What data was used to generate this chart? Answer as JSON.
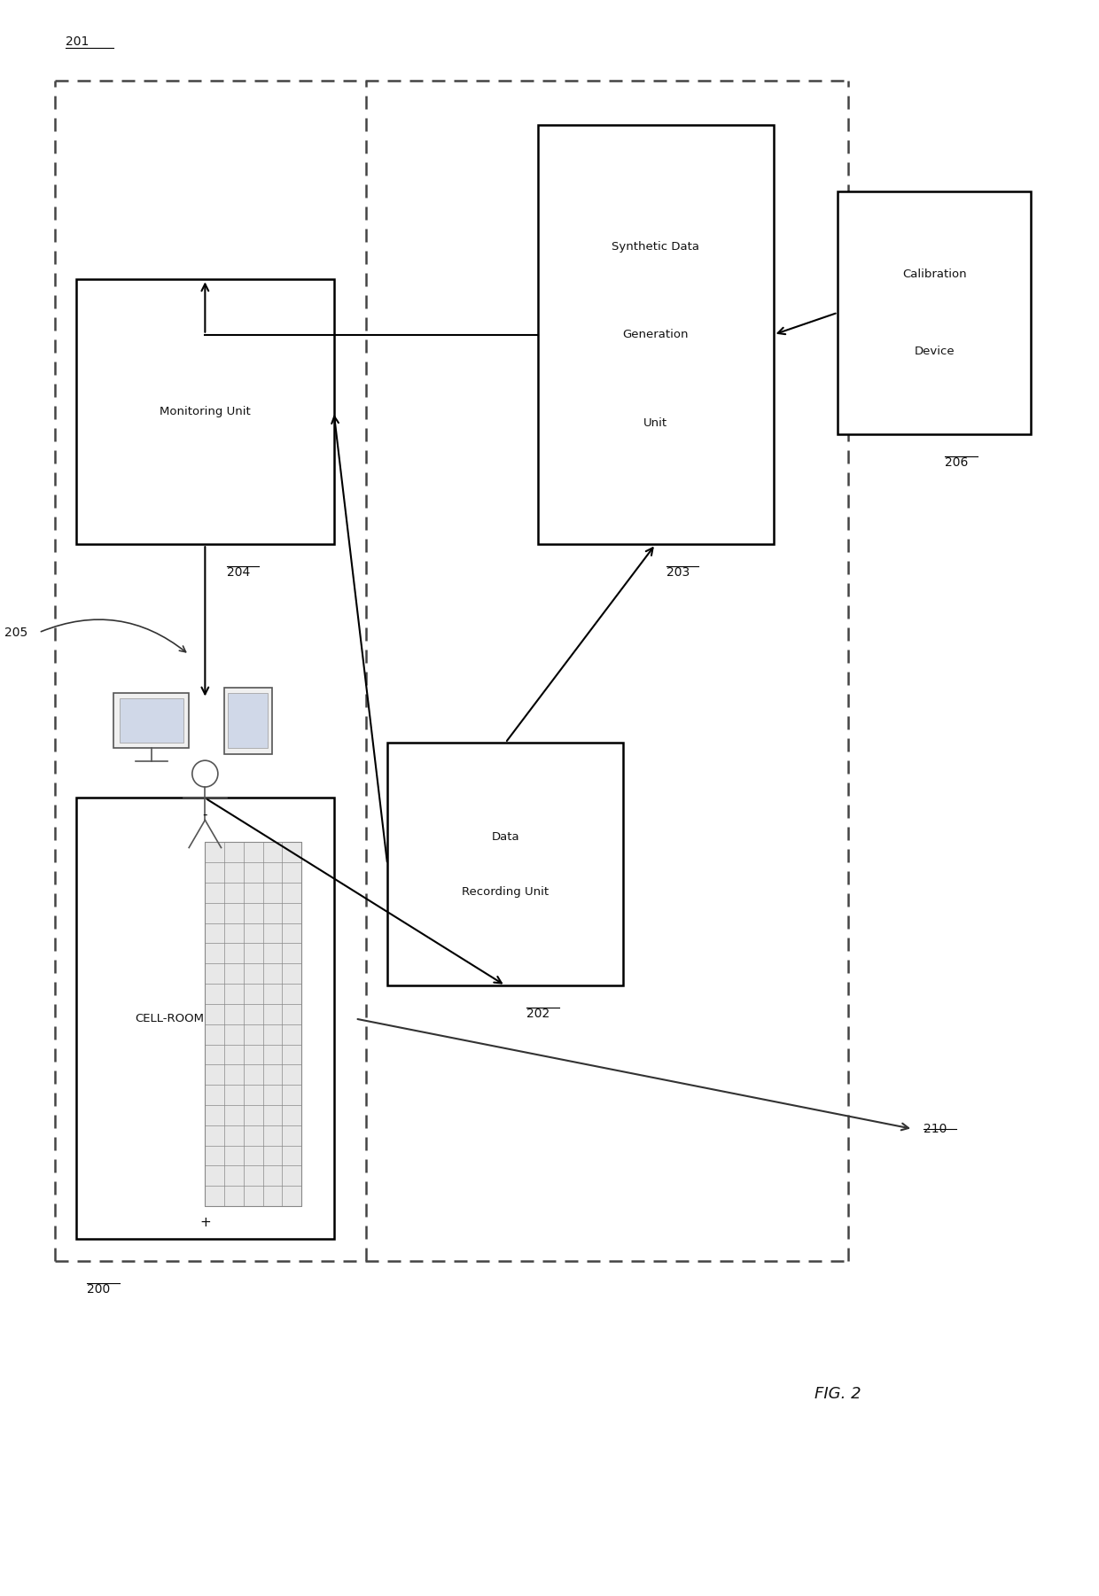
{
  "fig_width": 12.4,
  "fig_height": 18.01,
  "bg_color": "#ffffff",
  "title": "FIG. 2",
  "label_201": "201",
  "label_200": "200",
  "label_202": "202",
  "label_203": "203",
  "label_204": "204",
  "label_205": "205",
  "label_206": "206",
  "label_210": "210",
  "box_cell_room_text": "CELL-ROOM",
  "box_data_recording_line1": "Data",
  "box_data_recording_line2": "Recording Unit",
  "box_synthetic_line1": "Synthetic Data",
  "box_synthetic_line2": "Generation",
  "box_synthetic_line3": "Unit",
  "box_monitoring_text": "Monitoring Unit",
  "box_calibration_line1": "Calibration",
  "box_calibration_line2": "Device",
  "box_color": "#ffffff",
  "box_edge_color": "#000000",
  "arrow_color": "#000000"
}
